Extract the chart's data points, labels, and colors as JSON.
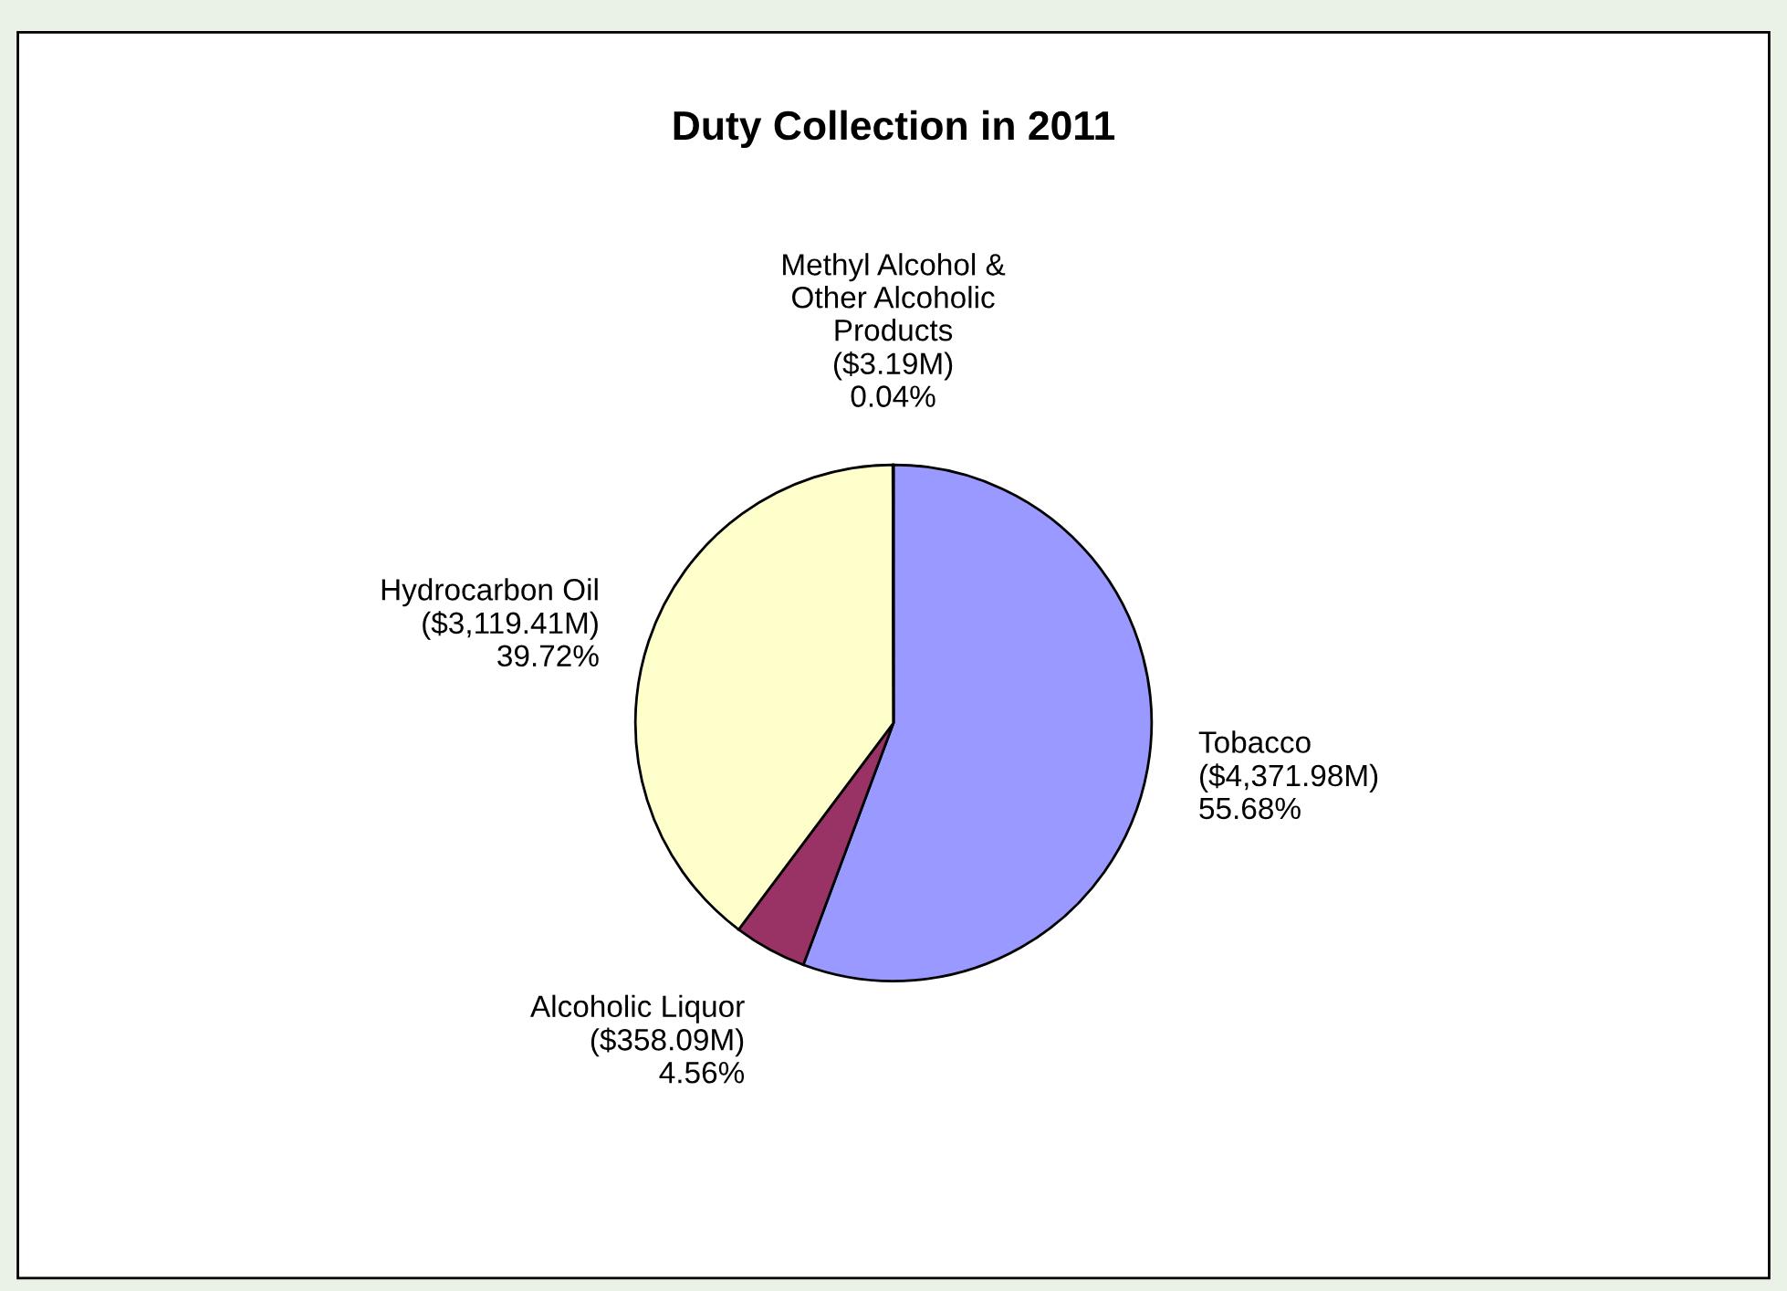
{
  "chart_data": {
    "type": "pie",
    "title": "Duty Collection in 2011",
    "categories": [
      "Tobacco",
      "Alcoholic Liquor",
      "Hydrocarbon Oil",
      "Methyl Alcohol &\nOther Alcoholic\nProducts"
    ],
    "values": [
      55.68,
      4.56,
      39.72,
      0.04
    ],
    "value_labels": [
      "($4,371.98M)\n55.68%",
      "($358.09M)\n4.56%",
      "($3,119.41M)\n39.72%",
      "($3.19M)\n0.04%"
    ],
    "colors": [
      "#9999ff",
      "#993366",
      "#ffffcc",
      "#ccffff"
    ],
    "legend": false
  }
}
